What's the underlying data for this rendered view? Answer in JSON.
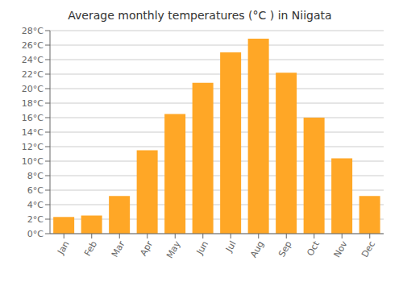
{
  "chart_data": {
    "type": "bar",
    "title": "Average monthly temperatures (°C ) in Niigata",
    "categories": [
      "Jan",
      "Feb",
      "Mar",
      "Apr",
      "May",
      "Jun",
      "Jul",
      "Aug",
      "Sep",
      "Oct",
      "Nov",
      "Dec"
    ],
    "values": [
      2.3,
      2.5,
      5.2,
      11.5,
      16.5,
      20.8,
      25.0,
      26.9,
      22.2,
      16.0,
      10.4,
      5.2
    ],
    "color": "#FFA726",
    "ylim": [
      0,
      28
    ],
    "yticks": [
      {
        "value": 0,
        "label": "0°C"
      },
      {
        "value": 2,
        "label": "2°C"
      },
      {
        "value": 4,
        "label": "4°C"
      },
      {
        "value": 6,
        "label": "6°C"
      },
      {
        "value": 8,
        "label": "8°C"
      },
      {
        "value": 10,
        "label": "10°C"
      },
      {
        "value": 12,
        "label": "12°C"
      },
      {
        "value": 14,
        "label": "14°C"
      },
      {
        "value": 16,
        "label": "16°C"
      },
      {
        "value": 18,
        "label": "18°C"
      },
      {
        "value": 20,
        "label": "20°C"
      },
      {
        "value": 22,
        "label": "22°C"
      },
      {
        "value": 24,
        "label": "24°C"
      },
      {
        "value": 26,
        "label": "26°C"
      },
      {
        "value": 28,
        "label": "28°C"
      }
    ],
    "grid": true
  }
}
